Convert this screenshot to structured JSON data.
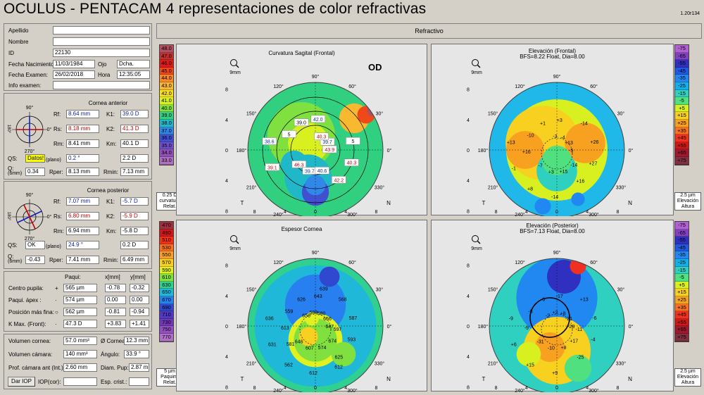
{
  "header": {
    "title": "OCULUS  -  PENTACAM   4 representaciones de color refractivas",
    "version": "1.20r134"
  },
  "patient": {
    "apellido_label": "Apellido",
    "apellido": "",
    "nombre_label": "Nombre",
    "nombre": "",
    "id_label": "ID",
    "id": "22130",
    "fecha_nac_label": "Fecha Nacimiento:",
    "fecha_nac": "11/03/1984",
    "ojo_label": "Ojo",
    "ojo": "Dcha.",
    "fecha_exam_label": "Fecha Examen:",
    "fecha_exam": "26/02/2018",
    "hora_label": "Hora",
    "hora": "12:35:05",
    "info_label": "Info examen:",
    "info": ""
  },
  "cornea_anterior": {
    "title": "Cornea anterior",
    "rf_label": "Rf:",
    "rf": "8.64 mm",
    "k1_label": "K1:",
    "k1": "39.0 D",
    "rs_label": "Rs:",
    "rs": "8.18 mm",
    "k2_label": "K2:",
    "k2": "41.3 D",
    "rm_label": "Rm:",
    "rm": "8.41 mm",
    "km_label": "Km:",
    "km": "40.1 D",
    "qs_label": "QS:",
    "qs": "Datos!",
    "plano": "(plano)",
    "axis": "0.2 °",
    "astig": "2.2 D",
    "q_label": "Q:",
    "q_sub": "(6mm)",
    "q": "0.34",
    "rper_label": "Rper:",
    "rper": "8.13 mm",
    "rmin_label": "Rmin:",
    "rmin": "7.13 mm",
    "deg_top": "90°",
    "deg_bot": "270°",
    "deg_left": "180°",
    "deg_right": "0°"
  },
  "cornea_posterior": {
    "title": "Cornea posterior",
    "rf_label": "Rf:",
    "rf": "7.07 mm",
    "k1_label": "K1:",
    "k1": "-5.7 D",
    "rs_label": "Rs:",
    "rs": "6.80 mm",
    "k2_label": "K2:",
    "k2": "-5.9 D",
    "rm_label": "Rm:",
    "rm": "6.94 mm",
    "km_label": "Km:",
    "km": "-5.8 D",
    "qs_label": "QS:",
    "qs": "OK",
    "plano": "(plano)",
    "axis": "24.9 °",
    "astig": "0.2 D",
    "q_label": "Q:",
    "q_sub": "(6mm)",
    "q": "-0.43",
    "rper_label": "Rper:",
    "rper": "7.41 mm",
    "rmin_label": "Rmin:",
    "rmin": "6.49 mm",
    "deg_top": "90°",
    "deg_bot": "270°",
    "deg_left": "180°",
    "deg_right": "0°"
  },
  "paqui": {
    "col_paqui": "Paqui:",
    "col_x": "x[mm]",
    "col_y": "y[mm]",
    "rows": [
      {
        "label": "Centro pupila:",
        "sym": "+",
        "val": "565 µm",
        "x": "-0.78",
        "y": "-0.32"
      },
      {
        "label": "Paqui. ápex :",
        "sym": "·",
        "val": "574 µm",
        "x": "0.00",
        "y": "0.00"
      },
      {
        "label": "Posición más fina:",
        "sym": "○",
        "val": "562 µm",
        "x": "-0.81",
        "y": "-0.94"
      },
      {
        "label": "K Max. (Front):",
        "sym": "·",
        "val": "47.3 D",
        "x": "+3.83",
        "y": "+1.41"
      }
    ]
  },
  "volumes": {
    "vol_cornea_label": "Volumen cornea:",
    "vol_cornea": "57.0 mm³",
    "diam_cornea_label": "Ø Cornea:",
    "diam_cornea": "12.3 mm",
    "vol_camara_label": "Volumen cámara:",
    "vol_camara": "140 mm³",
    "angulo_label": "Ángulo:",
    "angulo": "33.9 °",
    "prof_label": "Prof. cámara ant (Int.):",
    "prof": "2.60 mm",
    "diam_pup_label": "Diam. Pup:",
    "diam_pup": "2.87 mm",
    "dar_iop": "Dar IOP",
    "iop_label": "IOP(cor):",
    "iop": "",
    "esp_label": "Esp. crist.:",
    "esp": ""
  },
  "refractivo": {
    "title": "Refractivo"
  },
  "maps": {
    "tl": {
      "title": "Curvatura Sagital (Frontal)",
      "subtitle": "",
      "eye": "OD",
      "scale": [
        "48.0",
        "47.0",
        "46.0",
        "45.0",
        "44.0",
        "43.0",
        "42.0",
        "41.0",
        "40.0",
        "39.0",
        "38.0",
        "37.0",
        "36.0",
        "35.0",
        "34.0",
        "33.0"
      ],
      "scale_colors": [
        "#b05060",
        "#c03030",
        "#e01818",
        "#f04818",
        "#f88828",
        "#f8b830",
        "#f8e020",
        "#d8f020",
        "#80e040",
        "#30d080",
        "#20b8c8",
        "#3088e8",
        "#4050d0",
        "#7050c8",
        "#9050b8",
        "#b070c0"
      ],
      "scale_foot": [
        "0.25 D",
        "curvatura",
        "Relat."
      ]
    },
    "tr": {
      "title": "Elevación (Frontal)",
      "subtitle": "BFS=8.22 Float, Dia=8.00",
      "scale": [
        "-75",
        "-65",
        "-55",
        "-45",
        "-35",
        "-25",
        "-15",
        "-5",
        "+5",
        "+15",
        "+25",
        "+35",
        "+45",
        "+55",
        "+65",
        "+75"
      ],
      "scale_colors": [
        "#b060d0",
        "#8040c0",
        "#3030c0",
        "#2058e0",
        "#2088f0",
        "#10b0e8",
        "#30d0c0",
        "#50e080",
        "#d8f020",
        "#f8d020",
        "#f8a020",
        "#f87020",
        "#f03020",
        "#d01818",
        "#a01830",
        "#803040"
      ],
      "scale_foot": [
        "2.5 µm",
        "Elevación",
        "Altura"
      ]
    },
    "bl": {
      "title": "Espesor Cornea",
      "subtitle": "",
      "scale": [
        "470",
        "490",
        "510",
        "530",
        "550",
        "570",
        "590",
        "610",
        "630",
        "650",
        "670",
        "690",
        "710",
        "730",
        "750",
        "770"
      ],
      "scale_colors": [
        "#a03040",
        "#d01818",
        "#f03018",
        "#f87020",
        "#f8a028",
        "#f8d020",
        "#e0f020",
        "#80e040",
        "#30d090",
        "#20b8d8",
        "#2880f0",
        "#3048d0",
        "#5038c0",
        "#7038b8",
        "#9050c0",
        "#b070c8"
      ],
      "scale_foot": [
        "5 µm",
        "Paquim.",
        "Relat."
      ]
    },
    "br": {
      "title": "Elevación (Posterior)",
      "subtitle": "BFS=7.13 Float, Dia=8.00",
      "scale": [
        "-75",
        "-65",
        "-55",
        "-45",
        "-35",
        "-25",
        "-15",
        "-5",
        "+5",
        "+15",
        "+25",
        "+35",
        "+45",
        "+55",
        "+65",
        "+75"
      ],
      "scale_colors": [
        "#b060d0",
        "#8040c0",
        "#3030c0",
        "#2058e0",
        "#2088f0",
        "#10b0e8",
        "#30d0c0",
        "#50e080",
        "#d8f020",
        "#f8d020",
        "#f8a020",
        "#f87020",
        "#f03020",
        "#d01818",
        "#a01830",
        "#803040"
      ],
      "scale_foot": [
        "2.5 µm",
        "Elevación",
        "Altura"
      ]
    }
  },
  "map_common": {
    "zoom": "9mm",
    "t": "T",
    "n": "N",
    "axis_ticks": [
      "8",
      "4",
      "0",
      "4",
      "8"
    ],
    "deg": [
      "90°",
      "60°",
      "30°",
      "0°",
      "330°",
      "300°",
      "270°",
      "240°",
      "210°",
      "180°",
      "150°",
      "120°"
    ]
  },
  "map_values": {
    "tl": [
      {
        "t": "43.9",
        "c": "#c00000"
      },
      {
        "t": "46.3",
        "c": "#c00000"
      },
      {
        "t": "42.0",
        "c": "#1030a0"
      },
      {
        "t": "42.2",
        "c": "#c00000"
      },
      {
        "t": "38.6",
        "c": "#1030a0"
      },
      {
        "t": "39.7",
        "c": "#1030a0"
      },
      {
        "t": "39.7",
        "c": "#1030a0"
      },
      {
        "t": "39.0",
        "c": "#000"
      },
      {
        "t": "40.3",
        "c": "#c00000"
      },
      {
        "t": "39.1",
        "c": "#c00000"
      },
      {
        "t": "40.3",
        "c": "#c00000"
      },
      {
        "t": "40.6",
        "c": "#1030a0"
      },
      {
        "t": "5",
        "c": "#000"
      },
      {
        "t": "5",
        "c": "#000"
      }
    ],
    "tr": [
      "-5",
      "-7",
      "+3",
      "+16",
      "+13",
      "+13",
      "+3",
      "+1",
      "+27",
      "-1",
      "-4",
      "+15",
      "-10",
      "+26",
      "+8",
      "-3",
      "-14",
      "+16",
      "-14",
      "-14"
    ],
    "bl": [
      "647",
      "646",
      "643",
      "625",
      "636",
      "656",
      "607",
      "626",
      "593",
      "631",
      "580",
      "574",
      "559",
      "587",
      "562",
      "588",
      "674",
      "613",
      "568",
      "612",
      "658",
      "597",
      "581",
      "639",
      "612"
    ],
    "br": [
      "-28",
      "-31",
      "-17",
      "-25",
      "-9",
      "-21",
      "-10",
      "-6",
      "-4",
      "+6",
      "+8",
      "+8",
      "-8",
      "-6",
      "+15",
      "+3",
      "+17",
      "-9",
      "+13",
      "+9",
      "-2",
      "-11"
    ]
  }
}
